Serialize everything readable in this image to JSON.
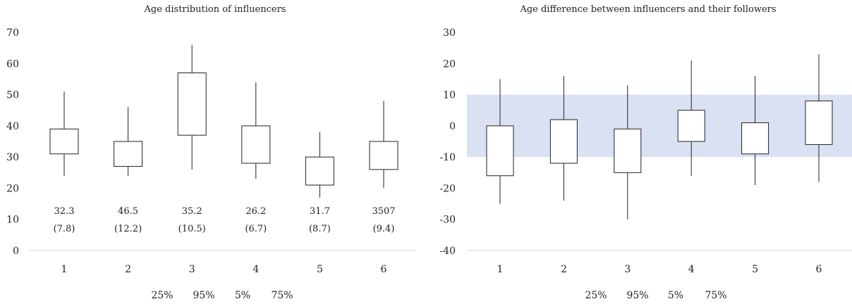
{
  "chart_data": [
    {
      "type": "box",
      "title": "Age distribution of influencers",
      "categories": [
        "1",
        "2",
        "3",
        "4",
        "5",
        "6"
      ],
      "ylim": [
        0,
        70
      ],
      "yticks": [
        "0",
        "10",
        "20",
        "30",
        "40",
        "50",
        "60",
        "70"
      ],
      "grid": false,
      "series": [
        {
          "values": {
            "p5": [
              24,
              24,
              26,
              23,
              17,
              20
            ],
            "p25": [
              31,
              27,
              37,
              28,
              21,
              26
            ],
            "p75": [
              39,
              35,
              57,
              40,
              30,
              35
            ],
            "p95": [
              51,
              46,
              66,
              54,
              38,
              48
            ]
          }
        }
      ],
      "annotations": [
        {
          "mean": "32.3",
          "sd": "(7.8)"
        },
        {
          "mean": "46.5",
          "sd": "(12.2)"
        },
        {
          "mean": "35.2",
          "sd": "(10.5)"
        },
        {
          "mean": "26.2",
          "sd": "(6.7)"
        },
        {
          "mean": "31.7",
          "sd": "(8.7)"
        },
        {
          "mean": "3507",
          "sd": "(9.4)"
        }
      ],
      "legend": [
        "25%",
        "95%",
        "5%",
        "75%"
      ]
    },
    {
      "type": "box",
      "title": "Age difference between influencers and their followers",
      "categories": [
        "1",
        "2",
        "3",
        "4",
        "5",
        "6"
      ],
      "ylim": [
        -40,
        30
      ],
      "yticks": [
        "-40",
        "-30",
        "-20",
        "-10",
        "0",
        "10",
        "20",
        "30"
      ],
      "grid": false,
      "band": {
        "from": -10,
        "to": 10,
        "color": "#d9e1f2"
      },
      "series": [
        {
          "values": {
            "p5": [
              -25,
              -24,
              -30,
              -16,
              -19,
              -18
            ],
            "p25": [
              -16,
              -12,
              -15,
              -5,
              -9,
              -6
            ],
            "p75": [
              0,
              2,
              -1,
              5,
              1,
              8
            ],
            "p95": [
              15,
              16,
              13,
              21,
              16,
              23
            ]
          }
        }
      ],
      "legend": [
        "25%",
        "95%",
        "5%",
        "75%"
      ]
    }
  ]
}
